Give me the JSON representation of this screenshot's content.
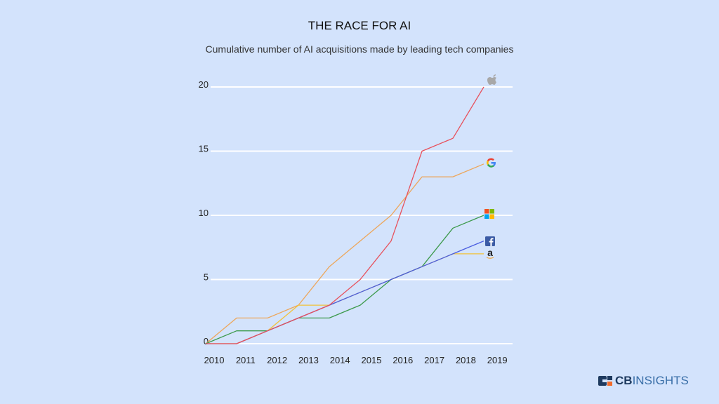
{
  "chart_data": {
    "type": "line",
    "title": "THE RACE FOR AI",
    "subtitle": "Cumulative number of AI acquisitions made by leading tech companies",
    "xlabel": "",
    "ylabel": "",
    "x": [
      "2010",
      "2011",
      "2012",
      "2013",
      "2014",
      "2015",
      "2016",
      "2017",
      "2018",
      "2019"
    ],
    "yticks": [
      "0",
      "5",
      "10",
      "15",
      "20"
    ],
    "ylim": [
      0,
      20
    ],
    "grid": true,
    "legend": "logos at line ends (right)",
    "series": [
      {
        "icon": "apple-logo",
        "color": "#e8505b",
        "values": [
          0,
          0,
          1,
          2,
          3,
          5,
          8,
          15,
          16,
          20
        ]
      },
      {
        "icon": "google-logo",
        "color": "#eda65a",
        "values": [
          0,
          2,
          2,
          3,
          6,
          8,
          10,
          13,
          13,
          14
        ]
      },
      {
        "icon": "microsoft-logo",
        "color": "#3d9a4c",
        "values": [
          0,
          1,
          1,
          2,
          2,
          3,
          5,
          6,
          9,
          10
        ]
      },
      {
        "icon": "facebook-logo",
        "color": "#4a5de0",
        "values": [
          0,
          0,
          1,
          2,
          3,
          4,
          5,
          6,
          7,
          8
        ]
      },
      {
        "icon": "amazon-logo",
        "color": "#f2c23a",
        "values": [
          0,
          0,
          1,
          3,
          3,
          4,
          5,
          6,
          7,
          7
        ]
      }
    ]
  },
  "brand": {
    "part1": "CB",
    "part2": "INSIGHTS"
  }
}
